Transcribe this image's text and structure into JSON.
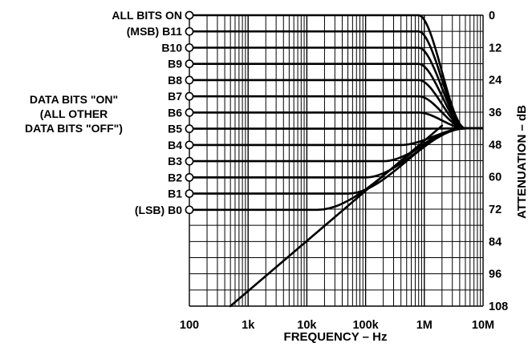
{
  "chart_data": {
    "type": "line",
    "title": "",
    "xlabel": "FREQUENCY – Hz",
    "ylabel": "ATTENUATION – dB",
    "x_scale": "log",
    "xlim": [
      100,
      10000000
    ],
    "ylim": [
      0,
      108
    ],
    "y_inverted": true,
    "grid": true,
    "x_tick_labels": [
      "100",
      "1k",
      "10k",
      "100k",
      "1M",
      "10M"
    ],
    "y_tick_labels": [
      "0",
      "12",
      "24",
      "36",
      "48",
      "60",
      "72",
      "84",
      "96",
      "108"
    ],
    "side_label": [
      "DATA BITS \"ON\"",
      "(ALL OTHER",
      "DATA BITS \"OFF\")"
    ],
    "series": [
      {
        "name": "ALL BITS ON",
        "flat_db": 0,
        "corner_hz": 800000
      },
      {
        "name": "(MSB) B11",
        "flat_db": 6.02,
        "corner_hz": 800000
      },
      {
        "name": "B10",
        "flat_db": 12.04,
        "corner_hz": 800000
      },
      {
        "name": "B9",
        "flat_db": 18.06,
        "corner_hz": 800000
      },
      {
        "name": "B8",
        "flat_db": 24.08,
        "corner_hz": 800000
      },
      {
        "name": "B7",
        "flat_db": 30.1,
        "corner_hz": 800000
      },
      {
        "name": "B6",
        "flat_db": 36.12,
        "corner_hz": 800000
      },
      {
        "name": "B5",
        "flat_db": 42.14,
        "corner_hz": 800000
      },
      {
        "name": "B4",
        "flat_db": 48.16,
        "corner_hz": 400000
      },
      {
        "name": "B3",
        "flat_db": 54.19,
        "corner_hz": 200000
      },
      {
        "name": "B2",
        "flat_db": 60.21,
        "corner_hz": 100000
      },
      {
        "name": "B1",
        "flat_db": 66.23,
        "corner_hz": 50000
      },
      {
        "name": "(LSB) B0",
        "flat_db": 72.25,
        "corner_hz": 15000
      }
    ],
    "asymptote": {
      "x": [
        500,
        2000000
      ],
      "y": [
        108,
        41
      ]
    },
    "converge_db": 42
  }
}
